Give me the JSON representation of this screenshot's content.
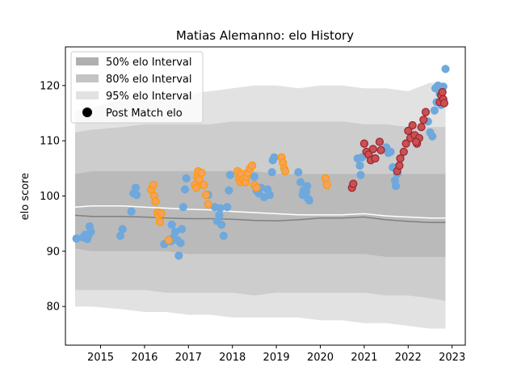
{
  "chart_data": {
    "type": "scatter",
    "title": "Matias Alemanno: elo History",
    "xlabel": "",
    "ylabel": "elo score",
    "xlim": [
      2014.2,
      2023.3
    ],
    "ylim": [
      73,
      127
    ],
    "x_ticks": [
      2015,
      2016,
      2017,
      2018,
      2019,
      2020,
      2021,
      2022,
      2023
    ],
    "y_ticks": [
      80,
      90,
      100,
      110,
      120
    ],
    "grid": false,
    "legend_position": "top-left",
    "legend": [
      {
        "label": "50% elo Interval",
        "color": "#b0b0b0",
        "kind": "patch"
      },
      {
        "label": "80% elo Interval",
        "color": "#c4c4c4",
        "kind": "patch"
      },
      {
        "label": "95% elo Interval",
        "color": "#e2e2e2",
        "kind": "patch"
      },
      {
        "label": "Post Match elo",
        "color": "#000000",
        "kind": "marker"
      }
    ],
    "intervals": {
      "x": [
        2014.42,
        2014.8,
        2015.5,
        2016.0,
        2016.5,
        2017.0,
        2017.5,
        2018.0,
        2018.5,
        2019.0,
        2019.5,
        2020.0,
        2020.5,
        2021.0,
        2021.5,
        2022.0,
        2022.5,
        2022.85
      ],
      "i95_low": [
        80.0,
        80.0,
        79.5,
        79.0,
        79.0,
        78.5,
        78.5,
        78.0,
        78.0,
        78.0,
        78.0,
        77.5,
        77.5,
        77.0,
        77.0,
        76.5,
        76.0,
        76.0
      ],
      "i95_high": [
        115.5,
        116.0,
        117.5,
        117.5,
        118.0,
        118.5,
        119.0,
        119.5,
        120.0,
        120.0,
        119.5,
        120.0,
        120.0,
        119.5,
        119.5,
        119.0,
        120.5,
        120.5
      ],
      "i80_low": [
        83.0,
        83.0,
        83.0,
        83.0,
        82.5,
        82.5,
        82.5,
        82.5,
        82.0,
        82.5,
        82.5,
        82.5,
        82.5,
        82.5,
        82.0,
        82.0,
        81.5,
        81.0
      ],
      "i80_high": [
        111.5,
        112.0,
        112.5,
        113.0,
        113.0,
        113.0,
        113.0,
        113.5,
        113.5,
        113.5,
        113.5,
        113.5,
        113.5,
        113.0,
        113.0,
        112.5,
        112.5,
        112.5
      ],
      "i50_low": [
        90.5,
        90.0,
        90.0,
        90.0,
        90.0,
        89.5,
        89.5,
        89.5,
        89.5,
        89.5,
        89.5,
        89.5,
        89.5,
        89.5,
        89.0,
        89.0,
        89.0,
        89.0
      ],
      "i50_high": [
        104.0,
        104.5,
        104.5,
        104.5,
        104.5,
        104.5,
        104.5,
        104.5,
        104.5,
        104.0,
        104.0,
        104.0,
        104.0,
        104.0,
        104.0,
        104.0,
        104.0,
        104.0
      ],
      "mean": [
        98.0,
        98.2,
        98.2,
        98.0,
        97.8,
        97.6,
        97.5,
        97.2,
        97.0,
        96.8,
        96.6,
        96.6,
        96.6,
        96.8,
        96.4,
        96.2,
        96.0,
        96.0
      ],
      "median": [
        96.5,
        96.3,
        96.3,
        96.2,
        96.0,
        95.9,
        95.9,
        95.8,
        95.6,
        95.5,
        95.7,
        96.0,
        96.0,
        96.2,
        95.7,
        95.4,
        95.2,
        95.2
      ]
    },
    "series": [
      {
        "color": "#6fa8dc",
        "edge": "#6fa8dc",
        "points": [
          [
            2014.45,
            92.3
          ],
          [
            2014.6,
            92.5
          ],
          [
            2014.65,
            93.0
          ],
          [
            2014.7,
            92.2
          ],
          [
            2014.75,
            94.5
          ],
          [
            2014.78,
            93.5
          ],
          [
            2014.72,
            92.8
          ],
          [
            2015.45,
            92.8
          ],
          [
            2015.5,
            94.0
          ],
          [
            2015.7,
            97.2
          ],
          [
            2015.75,
            100.5
          ],
          [
            2015.8,
            101.5
          ],
          [
            2015.82,
            100.2
          ],
          [
            2016.45,
            91.3
          ],
          [
            2016.6,
            91.8
          ],
          [
            2016.65,
            92.5
          ],
          [
            2016.7,
            93.5
          ],
          [
            2016.75,
            92.0
          ],
          [
            2016.78,
            89.2
          ],
          [
            2016.82,
            91.5
          ],
          [
            2016.85,
            94.0
          ],
          [
            2016.88,
            98.0
          ],
          [
            2016.92,
            101.2
          ],
          [
            2016.95,
            103.2
          ],
          [
            2016.62,
            94.8
          ],
          [
            2017.45,
            100.2
          ],
          [
            2017.6,
            98.0
          ],
          [
            2017.65,
            95.5
          ],
          [
            2017.7,
            96.5
          ],
          [
            2017.75,
            94.8
          ],
          [
            2017.8,
            92.8
          ],
          [
            2017.88,
            98.0
          ],
          [
            2017.92,
            101.0
          ],
          [
            2017.95,
            103.8
          ],
          [
            2017.72,
            97.8
          ],
          [
            2018.5,
            103.5
          ],
          [
            2018.55,
            101.0
          ],
          [
            2018.6,
            100.5
          ],
          [
            2018.65,
            101.5
          ],
          [
            2018.72,
            99.8
          ],
          [
            2018.85,
            100.2
          ],
          [
            2018.9,
            104.3
          ],
          [
            2018.92,
            106.5
          ],
          [
            2018.95,
            107.0
          ],
          [
            2018.8,
            101.2
          ],
          [
            2019.5,
            104.3
          ],
          [
            2019.55,
            102.5
          ],
          [
            2019.6,
            100.2
          ],
          [
            2019.62,
            101.0
          ],
          [
            2019.65,
            100.5
          ],
          [
            2019.7,
            101.8
          ],
          [
            2019.72,
            99.5
          ],
          [
            2019.75,
            99.2
          ],
          [
            2019.68,
            100.8
          ],
          [
            2020.85,
            106.8
          ],
          [
            2020.9,
            105.5
          ],
          [
            2020.92,
            103.8
          ],
          [
            2020.95,
            107.0
          ],
          [
            2021.5,
            108.8
          ],
          [
            2021.55,
            107.8
          ],
          [
            2021.6,
            108.0
          ],
          [
            2021.65,
            105.2
          ],
          [
            2021.7,
            102.8
          ],
          [
            2021.72,
            101.8
          ],
          [
            2021.75,
            104.0
          ],
          [
            2022.55,
            110.8
          ],
          [
            2022.45,
            113.5
          ],
          [
            2022.5,
            111.5
          ],
          [
            2022.6,
            115.5
          ],
          [
            2022.62,
            119.5
          ],
          [
            2022.65,
            117.0
          ],
          [
            2022.68,
            120.0
          ],
          [
            2022.72,
            118.5
          ],
          [
            2022.75,
            116.5
          ],
          [
            2022.8,
            119.8
          ],
          [
            2022.85,
            123.0
          ]
        ]
      },
      {
        "color": "#f5a25d",
        "edge": "#ff9900",
        "points": [
          [
            2016.15,
            101.2
          ],
          [
            2016.2,
            102.0
          ],
          [
            2016.22,
            100.0
          ],
          [
            2016.25,
            99.0
          ],
          [
            2016.3,
            97.0
          ],
          [
            2016.32,
            96.5
          ],
          [
            2016.35,
            95.3
          ],
          [
            2016.38,
            96.8
          ],
          [
            2016.55,
            92.0
          ],
          [
            2017.15,
            102.0
          ],
          [
            2017.2,
            103.5
          ],
          [
            2017.22,
            104.5
          ],
          [
            2017.25,
            103.0
          ],
          [
            2017.3,
            104.2
          ],
          [
            2017.35,
            102.0
          ],
          [
            2017.4,
            100.2
          ],
          [
            2017.45,
            98.5
          ],
          [
            2017.18,
            101.5
          ],
          [
            2018.12,
            104.5
          ],
          [
            2018.15,
            103.2
          ],
          [
            2018.18,
            102.5
          ],
          [
            2018.2,
            104.0
          ],
          [
            2018.25,
            103.0
          ],
          [
            2018.3,
            102.5
          ],
          [
            2018.32,
            103.5
          ],
          [
            2018.35,
            104.2
          ],
          [
            2018.4,
            105.0
          ],
          [
            2018.45,
            105.5
          ],
          [
            2018.5,
            102.0
          ],
          [
            2018.55,
            101.5
          ],
          [
            2019.12,
            107.0
          ],
          [
            2019.15,
            106.0
          ],
          [
            2019.18,
            105.0
          ],
          [
            2019.2,
            104.5
          ],
          [
            2020.12,
            103.2
          ],
          [
            2020.15,
            102.0
          ]
        ]
      },
      {
        "color": "#c9514e",
        "edge": "#9b2335",
        "points": [
          [
            2020.72,
            101.5
          ],
          [
            2020.75,
            102.2
          ],
          [
            2021.0,
            109.5
          ],
          [
            2021.05,
            108.0
          ],
          [
            2021.1,
            107.5
          ],
          [
            2021.15,
            106.5
          ],
          [
            2021.2,
            108.5
          ],
          [
            2021.25,
            106.8
          ],
          [
            2021.35,
            109.8
          ],
          [
            2021.38,
            108.3
          ],
          [
            2021.75,
            104.5
          ],
          [
            2021.8,
            105.5
          ],
          [
            2021.82,
            106.8
          ],
          [
            2021.9,
            108.0
          ],
          [
            2021.95,
            109.5
          ],
          [
            2022.0,
            111.8
          ],
          [
            2022.05,
            110.5
          ],
          [
            2022.1,
            112.8
          ],
          [
            2022.15,
            111.0
          ],
          [
            2022.2,
            109.5
          ],
          [
            2022.25,
            110.5
          ],
          [
            2022.3,
            112.5
          ],
          [
            2022.35,
            113.8
          ],
          [
            2022.4,
            115.2
          ],
          [
            2022.18,
            109.8
          ],
          [
            2022.72,
            117.0
          ],
          [
            2022.75,
            118.3
          ],
          [
            2022.78,
            118.8
          ],
          [
            2022.8,
            117.5
          ],
          [
            2022.82,
            116.8
          ]
        ]
      }
    ]
  }
}
